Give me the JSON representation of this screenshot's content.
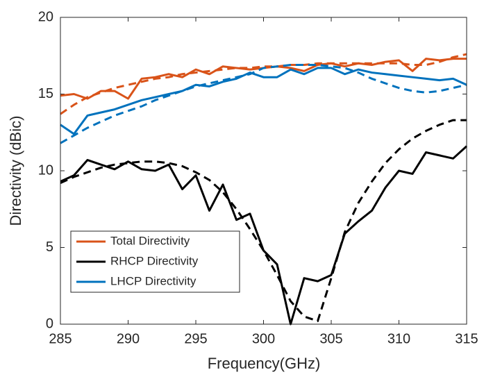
{
  "chart_data": {
    "type": "line",
    "xlabel": "Frequency(GHz)",
    "ylabel": "Directivity (dBic)",
    "x": [
      285,
      286,
      287,
      288,
      289,
      290,
      291,
      292,
      293,
      294,
      295,
      296,
      297,
      298,
      299,
      300,
      301,
      302,
      303,
      304,
      305,
      306,
      307,
      308,
      309,
      310,
      311,
      312,
      313,
      314,
      315
    ],
    "xlim": [
      285,
      315
    ],
    "xticks": [
      285,
      290,
      295,
      300,
      305,
      310,
      315
    ],
    "ylim": [
      0,
      20
    ],
    "yticks": [
      0,
      5,
      10,
      15,
      20
    ],
    "legend": "lower left",
    "series": [
      {
        "name": "Total Directivity",
        "color": "#D95319",
        "values": [
          14.9,
          15.0,
          14.7,
          15.2,
          15.2,
          14.7,
          16.0,
          16.1,
          16.3,
          16.1,
          16.6,
          16.3,
          16.8,
          16.7,
          16.6,
          16.7,
          16.8,
          16.7,
          16.5,
          16.9,
          17.0,
          16.8,
          17.0,
          16.9,
          17.1,
          17.2,
          16.5,
          17.3,
          17.2,
          17.3,
          17.3
        ]
      },
      {
        "name": "RHCP Directivity",
        "color": "#000000",
        "values": [
          9.3,
          9.7,
          10.7,
          10.4,
          10.1,
          10.6,
          10.1,
          10.0,
          10.4,
          8.8,
          9.7,
          7.4,
          9.1,
          6.8,
          7.2,
          4.8,
          3.9,
          0,
          3.0,
          2.8,
          3.2,
          5.9,
          6.7,
          7.4,
          8.9,
          10.0,
          9.8,
          11.2,
          11.0,
          10.8,
          11.6
        ]
      },
      {
        "name": "LHCP Directivity",
        "color": "#0072BD",
        "values": [
          13.0,
          12.4,
          13.6,
          13.8,
          14.0,
          14.3,
          14.6,
          14.8,
          15.0,
          15.2,
          15.6,
          15.5,
          15.8,
          16.0,
          16.4,
          16.1,
          16.1,
          16.6,
          16.3,
          16.7,
          16.7,
          16.3,
          16.6,
          16.4,
          16.3,
          16.2,
          16.1,
          16.0,
          15.9,
          16.0,
          15.6
        ]
      },
      {
        "color": "#D95319",
        "dashed": true,
        "values": [
          13.7,
          14.3,
          14.8,
          15.1,
          15.4,
          15.6,
          15.8,
          16.0,
          16.1,
          16.3,
          16.4,
          16.5,
          16.6,
          16.7,
          16.7,
          16.8,
          16.8,
          16.9,
          16.9,
          17.0,
          17.0,
          17.0,
          17.0,
          17.0,
          17.0,
          17.0,
          16.9,
          16.9,
          17.1,
          17.4,
          17.6
        ]
      },
      {
        "color": "#000000",
        "dashed": true,
        "values": [
          9.2,
          9.6,
          9.9,
          10.2,
          10.4,
          10.5,
          10.6,
          10.6,
          10.5,
          10.3,
          9.9,
          9.4,
          8.6,
          7.5,
          6.2,
          4.8,
          3.2,
          1.5,
          0.5,
          0.2,
          3.0,
          6.0,
          7.9,
          9.3,
          10.5,
          11.4,
          12.1,
          12.6,
          13.0,
          13.3,
          13.3
        ]
      },
      {
        "color": "#0072BD",
        "dashed": true,
        "values": [
          11.8,
          12.3,
          12.8,
          13.2,
          13.6,
          13.9,
          14.2,
          14.6,
          14.9,
          15.2,
          15.5,
          15.7,
          15.9,
          16.1,
          16.3,
          16.7,
          16.8,
          16.9,
          16.9,
          16.9,
          16.8,
          16.7,
          16.4,
          16.0,
          15.7,
          15.4,
          15.2,
          15.1,
          15.2,
          15.4,
          15.6
        ]
      }
    ]
  }
}
